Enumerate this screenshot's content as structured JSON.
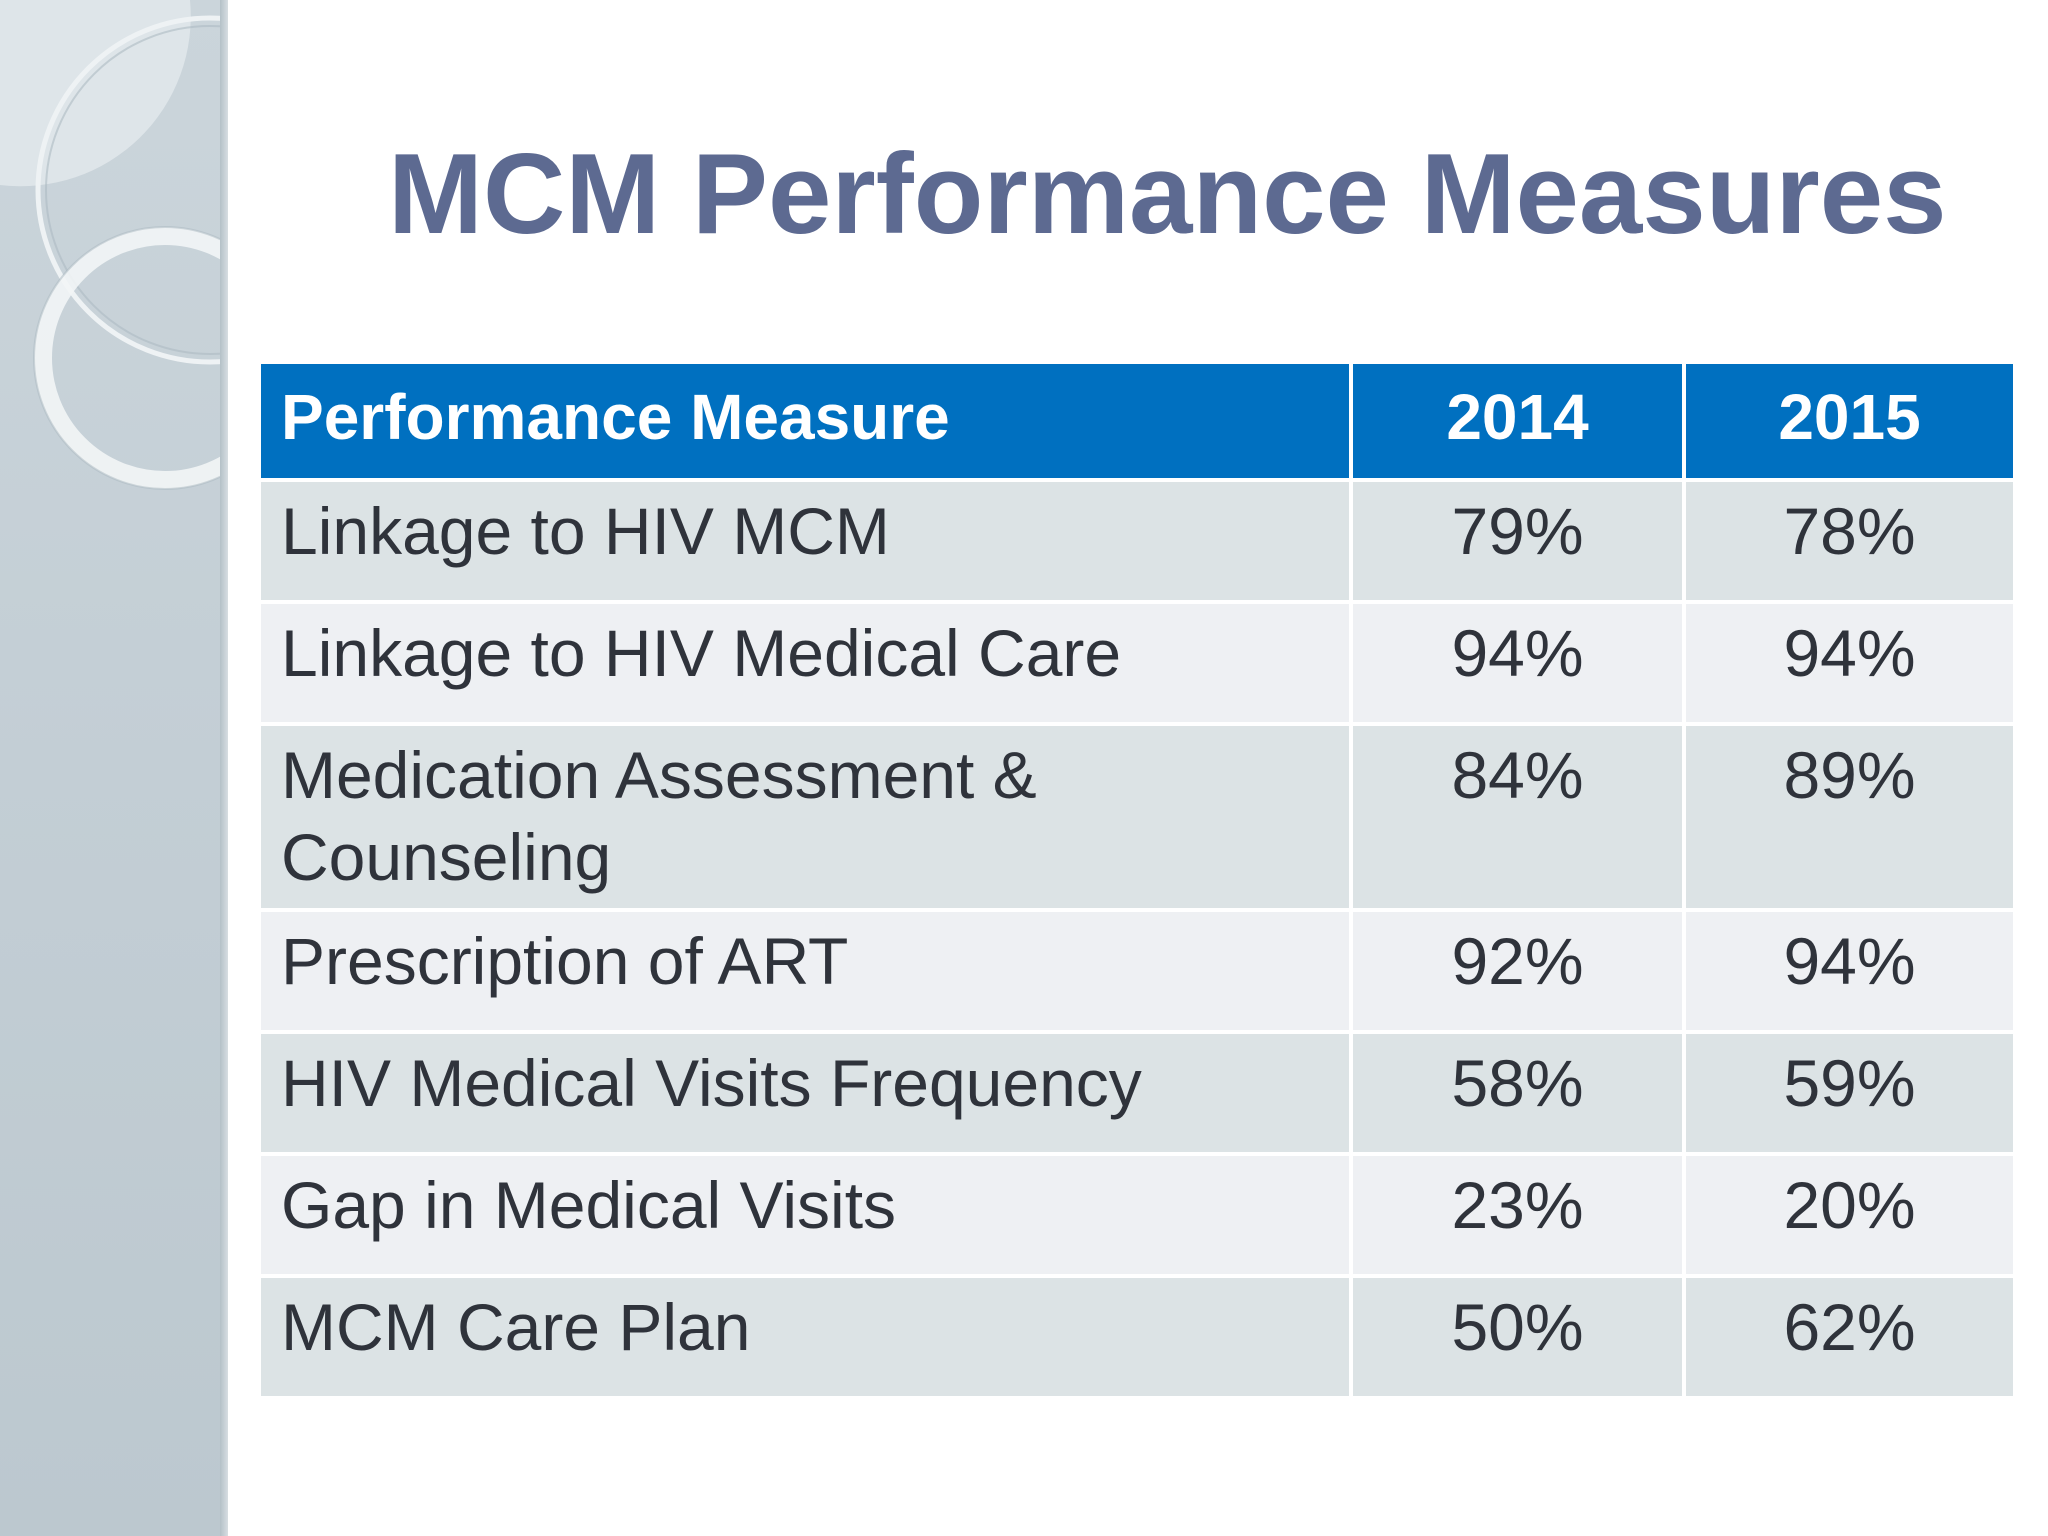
{
  "slide": {
    "title": "MCM Performance Measures"
  },
  "table": {
    "headers": {
      "measure": "Performance Measure",
      "year1": "2014",
      "year2": "2015"
    },
    "rows": [
      {
        "measure": "Linkage to HIV MCM",
        "y2014": "79%",
        "y2015": "78%"
      },
      {
        "measure": "Linkage to HIV Medical Care",
        "y2014": "94%",
        "y2015": "94%"
      },
      {
        "measure": "Medication Assessment & Counseling",
        "y2014": "84%",
        "y2015": "89%"
      },
      {
        "measure": "Prescription of ART",
        "y2014": "92%",
        "y2015": "94%"
      },
      {
        "measure": "HIV Medical Visits Frequency",
        "y2014": "58%",
        "y2015": "59%"
      },
      {
        "measure": "Gap in Medical Visits",
        "y2014": "23%",
        "y2015": "20%"
      },
      {
        "measure": "MCM Care Plan",
        "y2014": "50%",
        "y2015": "62%"
      }
    ]
  },
  "colors": {
    "title": "#5d6a91",
    "header_bg": "#0070c0",
    "header_text": "#ffffff",
    "row_odd": "#dce3e5",
    "row_even": "#eef0f3",
    "body_text": "#2f333b",
    "sidebar": "#c3ced5"
  }
}
